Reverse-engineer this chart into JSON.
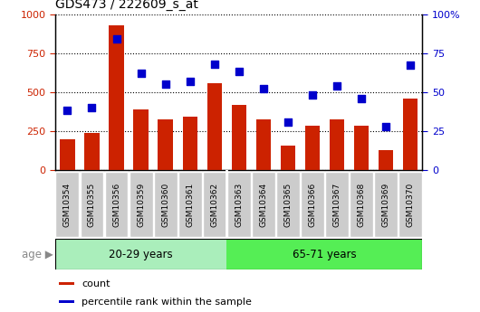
{
  "title": "GDS473 / 222609_s_at",
  "samples": [
    "GSM10354",
    "GSM10355",
    "GSM10356",
    "GSM10359",
    "GSM10360",
    "GSM10361",
    "GSM10362",
    "GSM10363",
    "GSM10364",
    "GSM10365",
    "GSM10366",
    "GSM10367",
    "GSM10368",
    "GSM10369",
    "GSM10370"
  ],
  "counts": [
    200,
    240,
    930,
    390,
    325,
    345,
    555,
    415,
    325,
    155,
    285,
    325,
    285,
    130,
    460
  ],
  "percentile_ranks": [
    38,
    40,
    84,
    62,
    55,
    57,
    68,
    63,
    52,
    31,
    48,
    54,
    46,
    28,
    67
  ],
  "group1_label": "20-29 years",
  "group2_label": "65-71 years",
  "group1_count": 7,
  "group2_count": 8,
  "bar_color": "#cc2200",
  "marker_color": "#0000cc",
  "group1_bg": "#aaeebb",
  "group2_bg": "#55ee55",
  "tick_bg": "#cccccc",
  "ylim_left": [
    0,
    1000
  ],
  "ylim_right": [
    0,
    100
  ],
  "yticks_left": [
    0,
    250,
    500,
    750,
    1000
  ],
  "yticks_right": [
    0,
    25,
    50,
    75,
    100
  ],
  "legend_items": [
    "count",
    "percentile rank within the sample"
  ],
  "age_label": "age"
}
